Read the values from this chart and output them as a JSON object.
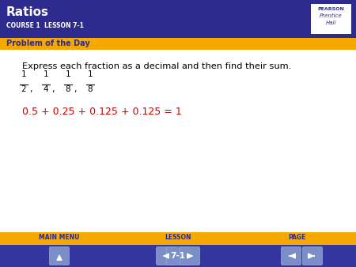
{
  "title": "Ratios",
  "subtitle": "COURSE 1  LESSON 7-1",
  "section_label": "Problem of the Day",
  "main_text": "Express each fraction as a decimal and then find their sum.",
  "fractions": [
    [
      "1",
      "2"
    ],
    [
      "1",
      "4"
    ],
    [
      "1",
      "8"
    ],
    [
      "1",
      "8"
    ]
  ],
  "answer_text": "0.5 + 0.25 + 0.125 + 0.125 = 1",
  "footer_labels": [
    "MAIN MENU",
    "LESSON",
    "PAGE"
  ],
  "footer_center_text": "7-1",
  "header_bg": "#2E2B8F",
  "header_text_color": "#FFFFFF",
  "section_bg": "#F5A800",
  "section_text_color": "#2E2B8F",
  "body_bg": "#FFFFFF",
  "answer_color": "#CC0000",
  "footer_bg": "#F5A800",
  "footer_nav_bg": "#3535A0",
  "fraction_color": "#000000",
  "pearson_outer_bg": "#2E2B8F",
  "pearson_inner_bg": "#FFFFFF",
  "nav_btn_color": "#7B8EC8",
  "nav_btn_edge": "#9AAAD8"
}
